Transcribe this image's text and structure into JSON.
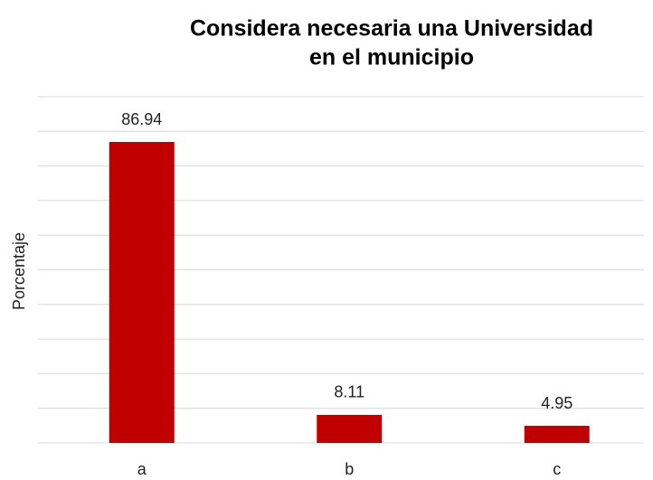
{
  "chart_data": {
    "type": "bar",
    "title": [
      "Considera necesaria una Universidad",
      "en el municipio"
    ],
    "ylabel": "Porcentaje",
    "categories": [
      "a",
      "b",
      "c"
    ],
    "values": [
      86.94,
      8.11,
      4.95
    ],
    "color": "#c00000",
    "ylim": [
      0,
      100
    ],
    "yticks": [
      0,
      10,
      20,
      30,
      40,
      50,
      60,
      70,
      80,
      90,
      100
    ],
    "grid": true
  }
}
